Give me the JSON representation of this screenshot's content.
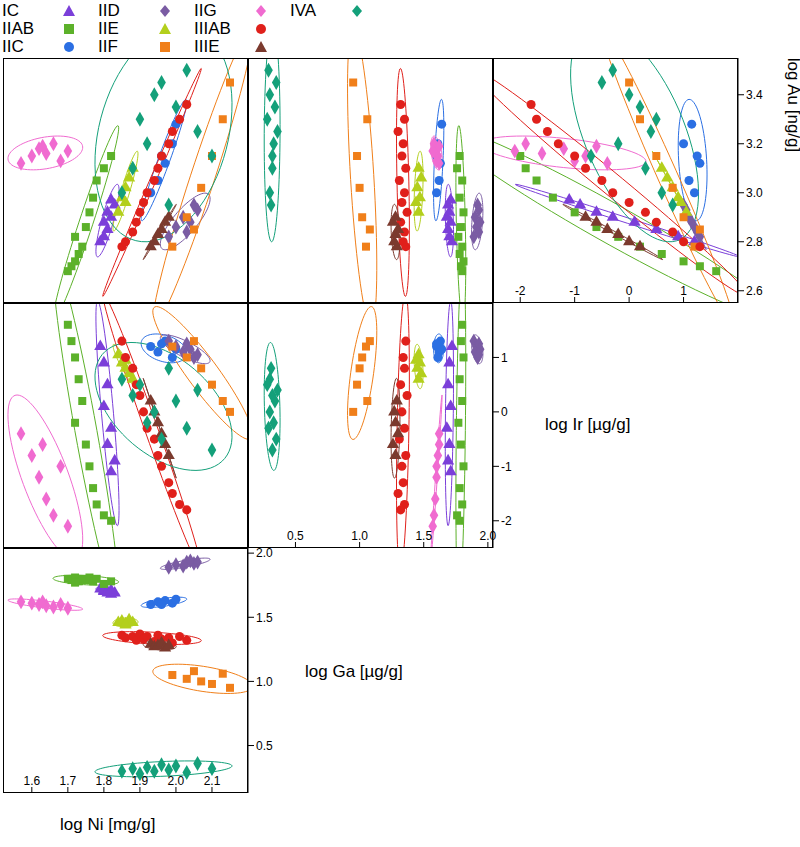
{
  "chart_data": {
    "type": "scatter_matrix",
    "legend": "top left",
    "variables": [
      {
        "label": "log Ni [mg/g]",
        "lim": [
          1.52,
          2.2
        ],
        "ticks": [
          1.6,
          1.7,
          1.8,
          1.9,
          {
            "value": 2,
            "label": "2.0"
          },
          2.1
        ]
      },
      {
        "label": "log Ga [µg/g]",
        "lim": [
          0.13,
          2.04
        ],
        "ticks": [
          0.5,
          {
            "value": 1,
            "label": "1.0"
          },
          1.5,
          {
            "value": 2,
            "label": "2.0"
          }
        ]
      },
      {
        "label": "log Ir [µg/g]",
        "lim": [
          -2.5,
          2.0
        ],
        "ticks": [
          -2,
          -1,
          0,
          1
        ]
      },
      {
        "label": "log Au [ng/g]",
        "lim": [
          2.55,
          3.55
        ],
        "ticks": [
          2.6,
          2.8,
          {
            "value": 3,
            "label": "3.0"
          },
          3.2,
          3.4
        ]
      }
    ],
    "series": [
      {
        "name": "IC",
        "color": "#7b3fd9",
        "marker": "triangle",
        "values": [
          [
            1.79,
            1.72,
            1.2,
            2.8
          ],
          [
            1.8,
            1.7,
            0.9,
            2.82
          ],
          [
            1.81,
            1.69,
            0.5,
            2.85
          ],
          [
            1.8,
            1.71,
            0.1,
            2.88
          ],
          [
            1.82,
            1.68,
            -0.3,
            2.9
          ],
          [
            1.81,
            1.7,
            -0.6,
            2.92
          ],
          [
            1.83,
            1.69,
            -0.9,
            2.95
          ],
          [
            1.82,
            1.71,
            -1.1,
            2.97
          ]
        ]
      },
      {
        "name": "IIAB",
        "color": "#5cb12a",
        "marker": "square",
        "values": [
          [
            1.7,
            1.8,
            1.6,
            2.68
          ],
          [
            1.71,
            1.79,
            1.3,
            2.7
          ],
          [
            1.72,
            1.81,
            1.0,
            2.72
          ],
          [
            1.73,
            1.78,
            0.6,
            2.75
          ],
          [
            1.74,
            1.8,
            0.2,
            2.78
          ],
          [
            1.72,
            1.77,
            -0.2,
            2.82
          ],
          [
            1.75,
            1.79,
            -0.6,
            2.86
          ],
          [
            1.76,
            1.81,
            -1.0,
            2.92
          ],
          [
            1.77,
            1.78,
            -1.4,
            2.98
          ],
          [
            1.78,
            1.8,
            -1.7,
            3.05
          ],
          [
            1.8,
            1.76,
            -1.9,
            3.1
          ],
          [
            1.82,
            1.78,
            -2.0,
            3.15
          ]
        ]
      },
      {
        "name": "IIC",
        "color": "#2b6fe3",
        "marker": "circle",
        "values": [
          [
            1.93,
            1.6,
            1.2,
            3.0
          ],
          [
            1.95,
            1.62,
            1.1,
            3.05
          ],
          [
            1.97,
            1.63,
            1.3,
            3.12
          ],
          [
            1.99,
            1.61,
            1.0,
            3.2
          ],
          [
            2.0,
            1.64,
            1.15,
            3.28
          ],
          [
            1.96,
            1.6,
            1.25,
            3.15
          ]
        ]
      },
      {
        "name": "IID",
        "color": "#7a5ca3",
        "marker": "diamond",
        "values": [
          [
            1.98,
            1.89,
            1.3,
            2.82
          ],
          [
            2.0,
            1.91,
            1.2,
            2.86
          ],
          [
            2.02,
            1.9,
            1.1,
            2.9
          ],
          [
            2.03,
            1.93,
            1.25,
            2.84
          ],
          [
            2.05,
            1.92,
            1.0,
            2.95
          ],
          [
            2.04,
            1.94,
            1.15,
            2.88
          ],
          [
            2.06,
            1.93,
            1.05,
            2.93
          ]
        ]
      },
      {
        "name": "IIE",
        "color": "#b3cf1c",
        "marker": "triangle",
        "values": [
          [
            1.84,
            1.46,
            1.05,
            2.92
          ],
          [
            1.85,
            1.47,
            0.9,
            2.98
          ],
          [
            1.86,
            1.45,
            0.8,
            3.02
          ],
          [
            1.87,
            1.48,
            0.7,
            3.06
          ],
          [
            1.88,
            1.46,
            0.6,
            3.1
          ],
          [
            1.86,
            1.44,
            0.95,
            2.96
          ]
        ]
      },
      {
        "name": "IIF",
        "color": "#f07f1a",
        "marker": "square",
        "values": [
          [
            1.99,
            1.05,
            1.2,
            2.78
          ],
          [
            2.03,
            1.02,
            1.0,
            2.9
          ],
          [
            2.07,
            1.0,
            0.8,
            3.02
          ],
          [
            2.1,
            0.98,
            0.5,
            3.15
          ],
          [
            2.13,
            1.06,
            0.2,
            3.3
          ],
          [
            2.15,
            0.95,
            0.0,
            3.45
          ],
          [
            2.05,
            1.08,
            1.3,
            2.85
          ]
        ]
      },
      {
        "name": "IIG",
        "color": "#f06bd0",
        "marker": "diamond",
        "values": [
          [
            1.57,
            1.62,
            -0.4,
            3.12
          ],
          [
            1.6,
            1.61,
            -0.8,
            3.15
          ],
          [
            1.62,
            1.6,
            -1.2,
            3.18
          ],
          [
            1.64,
            1.59,
            -1.6,
            3.16
          ],
          [
            1.66,
            1.58,
            -1.9,
            3.2
          ],
          [
            1.68,
            1.6,
            -1.0,
            3.13
          ],
          [
            1.7,
            1.57,
            -2.1,
            3.17
          ],
          [
            1.63,
            1.62,
            -0.6,
            3.19
          ]
        ]
      },
      {
        "name": "IIIAB",
        "color": "#e0201b",
        "marker": "circle",
        "values": [
          [
            1.85,
            1.36,
            1.3,
            2.78
          ],
          [
            1.86,
            1.34,
            1.0,
            2.8
          ],
          [
            1.88,
            1.35,
            0.8,
            2.84
          ],
          [
            1.89,
            1.32,
            0.5,
            2.88
          ],
          [
            1.9,
            1.37,
            0.3,
            2.92
          ],
          [
            1.91,
            1.33,
            0.0,
            2.96
          ],
          [
            1.92,
            1.35,
            -0.3,
            3.0
          ],
          [
            1.94,
            1.31,
            -0.5,
            3.05
          ],
          [
            1.95,
            1.36,
            -0.8,
            3.1
          ],
          [
            1.96,
            1.33,
            -1.0,
            3.15
          ],
          [
            1.98,
            1.34,
            -1.3,
            3.2
          ],
          [
            1.99,
            1.3,
            -1.5,
            3.25
          ],
          [
            2.01,
            1.35,
            -1.7,
            3.3
          ],
          [
            2.03,
            1.32,
            -1.8,
            3.36
          ]
        ]
      },
      {
        "name": "IIIE",
        "color": "#7b3a2e",
        "marker": "triangle",
        "values": [
          [
            1.93,
            1.29,
            0.2,
            2.78
          ],
          [
            1.94,
            1.27,
            0.0,
            2.8
          ],
          [
            1.95,
            1.28,
            -0.2,
            2.83
          ],
          [
            1.96,
            1.3,
            -0.4,
            2.85
          ],
          [
            1.97,
            1.26,
            -0.6,
            2.88
          ],
          [
            1.98,
            1.28,
            -0.8,
            2.9
          ]
        ]
      },
      {
        "name": "IVA",
        "color": "#14a07a",
        "marker": "diamond",
        "values": [
          [
            1.85,
            0.3,
            0.6,
            3.0
          ],
          [
            1.88,
            0.32,
            0.3,
            3.1
          ],
          [
            1.9,
            0.28,
            0.5,
            3.3
          ],
          [
            1.92,
            0.33,
            -0.2,
            3.2
          ],
          [
            1.94,
            0.3,
            0.0,
            3.4
          ],
          [
            1.96,
            0.35,
            -0.5,
            3.45
          ],
          [
            1.98,
            0.31,
            0.8,
            2.95
          ],
          [
            2.0,
            0.34,
            0.2,
            3.35
          ],
          [
            2.03,
            0.29,
            -0.3,
            3.5
          ],
          [
            2.06,
            0.36,
            0.4,
            3.25
          ],
          [
            2.1,
            0.32,
            -0.7,
            3.15
          ]
        ]
      }
    ]
  }
}
